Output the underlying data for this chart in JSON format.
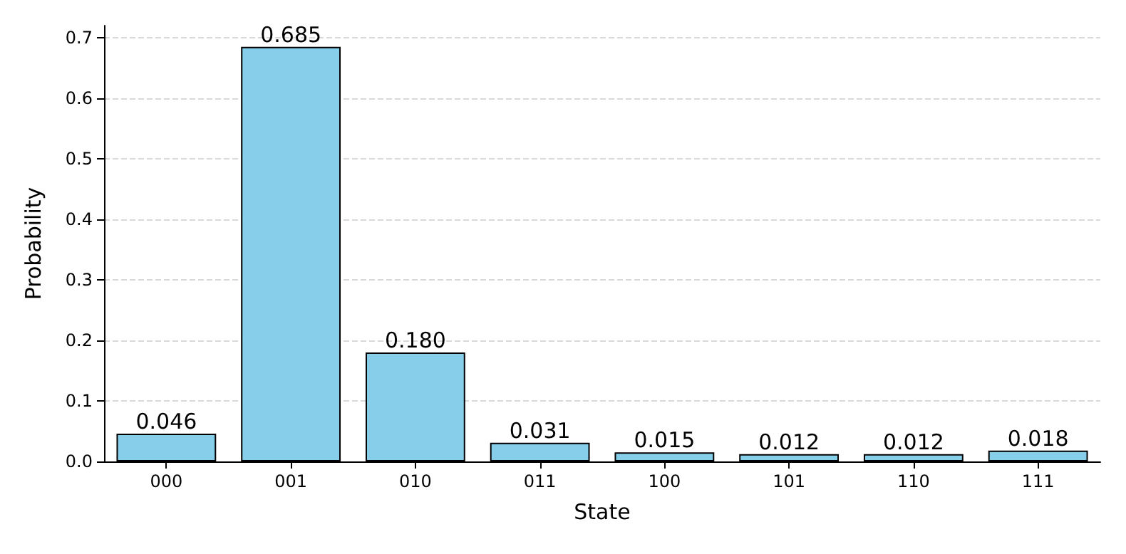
{
  "chart_data": {
    "type": "bar",
    "xlabel": "State",
    "ylabel": "Probability",
    "categories": [
      "000",
      "001",
      "010",
      "011",
      "100",
      "101",
      "110",
      "111"
    ],
    "values": [
      0.046,
      0.685,
      0.18,
      0.031,
      0.015,
      0.012,
      0.012,
      0.018
    ],
    "value_labels": [
      "0.046",
      "0.685",
      "0.180",
      "0.031",
      "0.015",
      "0.012",
      "0.012",
      "0.018"
    ],
    "color": "#87ceeb",
    "ylim": [
      0,
      0.72
    ],
    "yticks": [
      {
        "value": 0,
        "label": "0.0"
      },
      0.1,
      0.2,
      0.3,
      0.4,
      0.5,
      0.6,
      0.7
    ],
    "grid": "y"
  }
}
